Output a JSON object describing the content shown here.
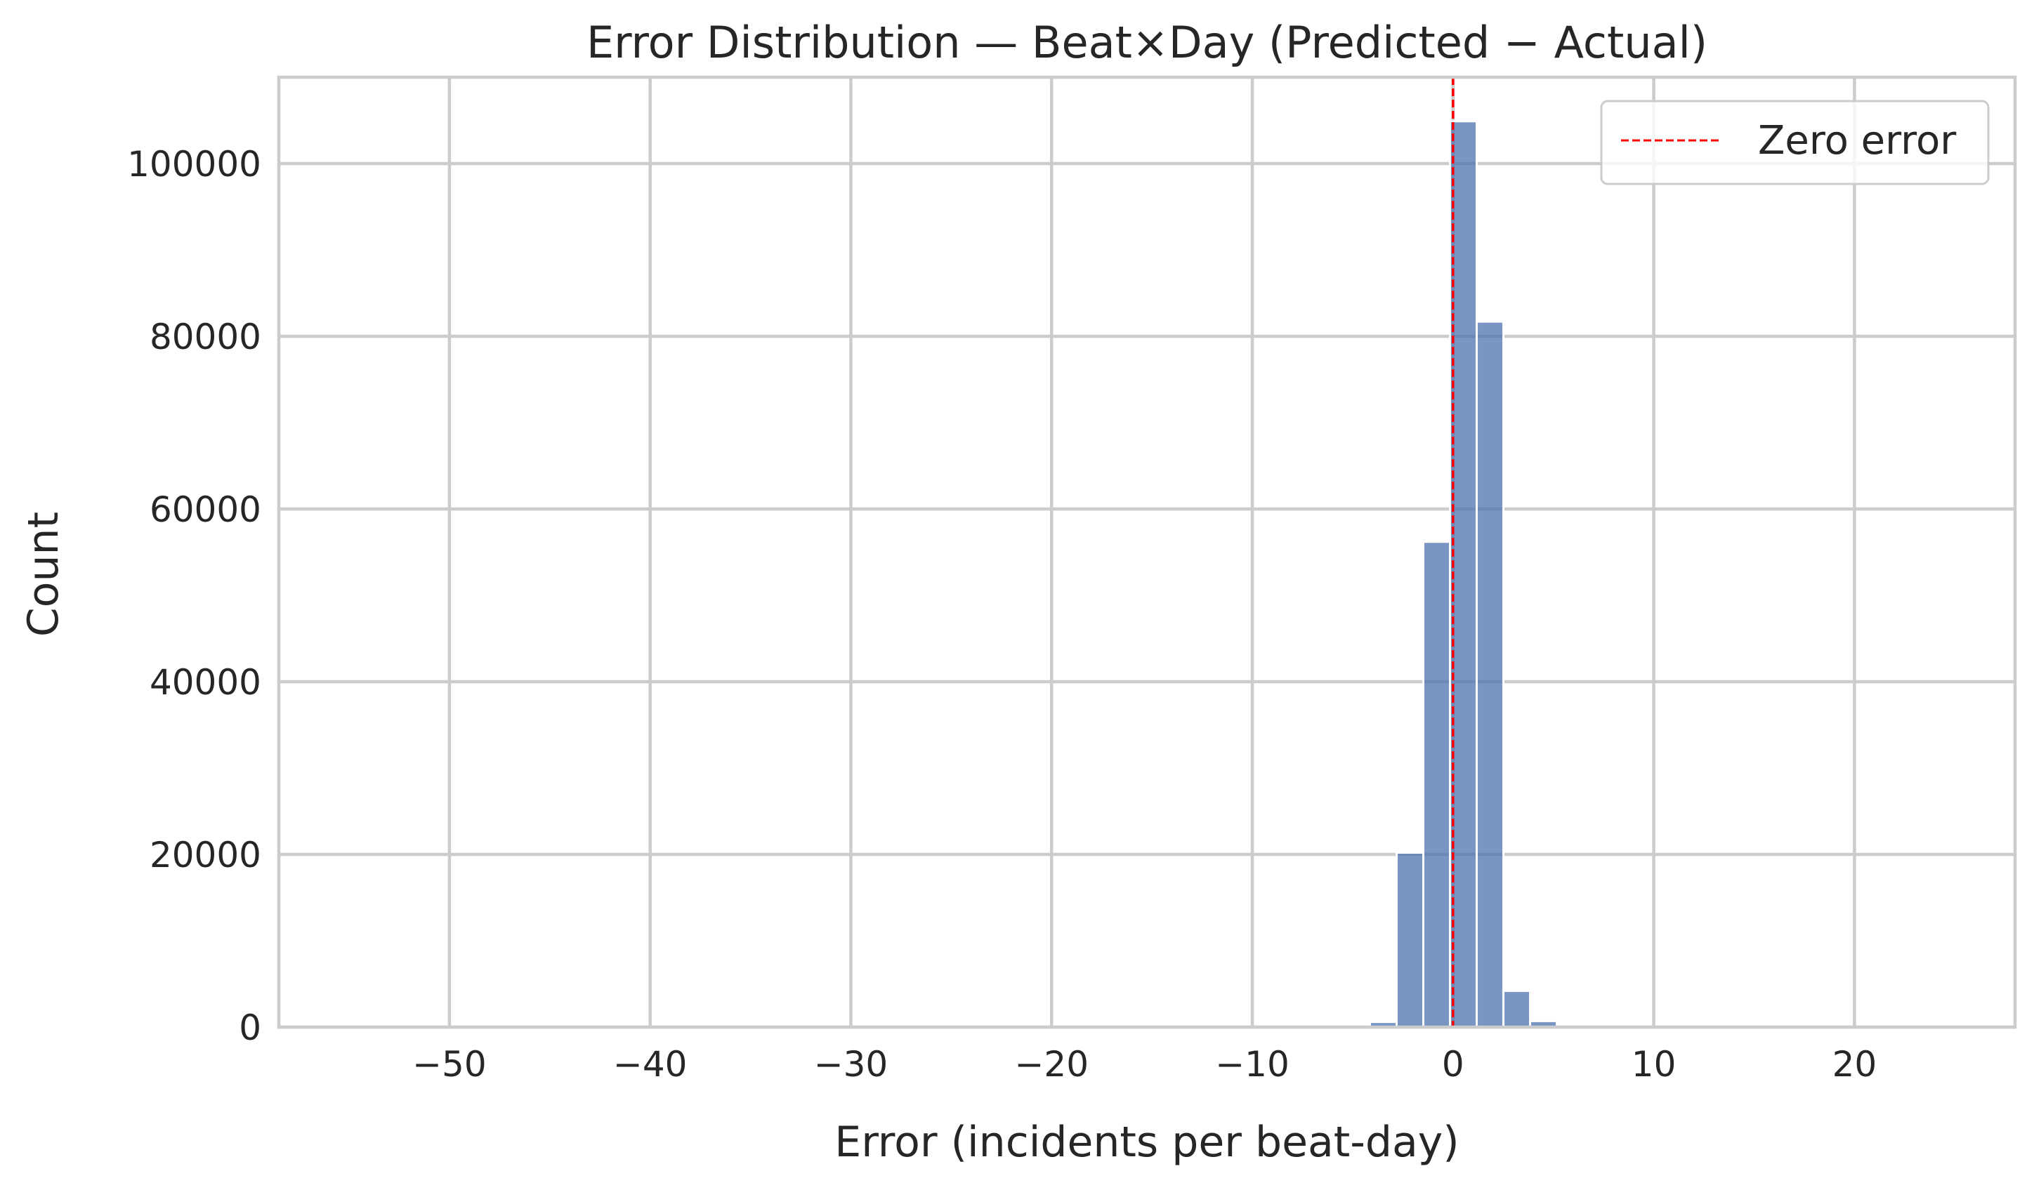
{
  "chart_data": {
    "type": "bar",
    "title": "Error Distribution — Beat×Day (Predicted − Actual)",
    "xlabel": "Error (incidents per beat-day)",
    "ylabel": "Count",
    "xlim": [
      -58.5,
      28.0
    ],
    "ylim": [
      0,
      110000
    ],
    "xticks": [
      -50,
      -40,
      -30,
      -20,
      -10,
      0,
      10,
      20
    ],
    "xtick_labels": [
      "−50",
      "−40",
      "−30",
      "−20",
      "−10",
      "0",
      "10",
      "20"
    ],
    "yticks": [
      0,
      20000,
      40000,
      60000,
      80000,
      100000
    ],
    "ytick_labels": [
      "0",
      "20000",
      "40000",
      "60000",
      "80000",
      "100000"
    ],
    "grid": true,
    "legend": {
      "position": "top-right",
      "entries": [
        "Zero error"
      ]
    },
    "bin_width": 1.33,
    "bins": [
      {
        "x0": -4.14,
        "x1": -2.81,
        "count": 600
      },
      {
        "x0": -2.81,
        "x1": -1.48,
        "count": 20200
      },
      {
        "x0": -1.48,
        "x1": -0.15,
        "count": 56200
      },
      {
        "x0": -0.15,
        "x1": 1.18,
        "count": 104900
      },
      {
        "x0": 1.18,
        "x1": 2.51,
        "count": 81700
      },
      {
        "x0": 2.51,
        "x1": 3.84,
        "count": 4200
      },
      {
        "x0": 3.84,
        "x1": 5.17,
        "count": 700
      }
    ],
    "reference_line": {
      "x": 0,
      "label": "Zero error",
      "color": "#ff0000",
      "style": "dashed"
    },
    "bar_color": "#4c72b0"
  }
}
